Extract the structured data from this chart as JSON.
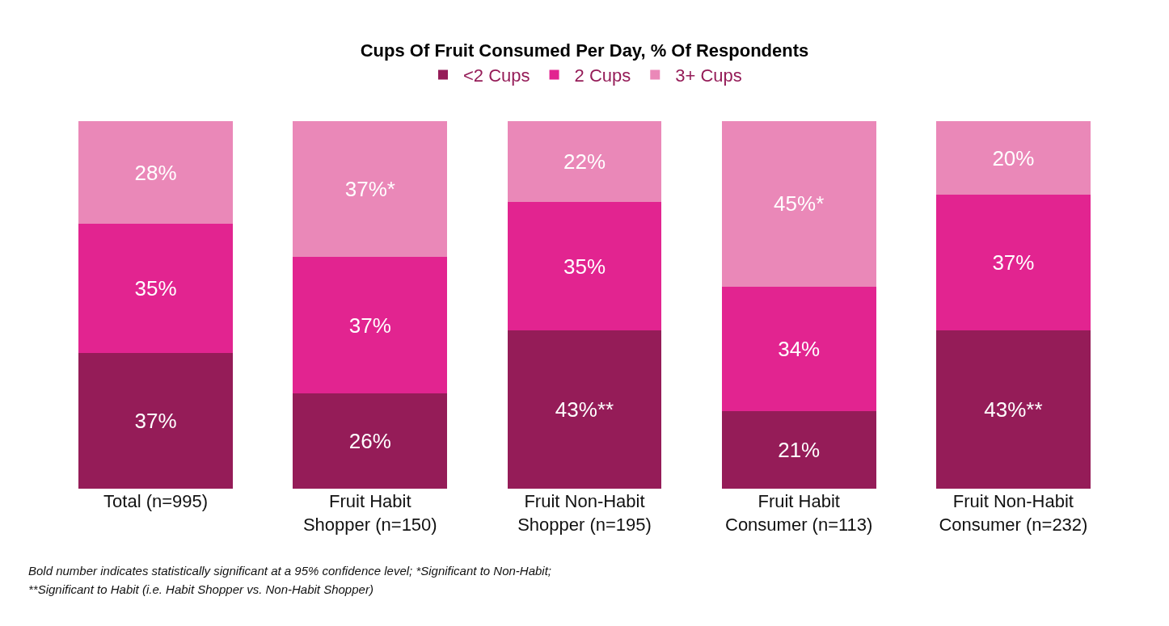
{
  "chart_data": {
    "type": "bar",
    "stacked": true,
    "title": "Cups Of Fruit Consumed Per Day, % Of Respondents",
    "categories": [
      "Total (n=995)",
      "Fruit Habit\nShopper (n=150)",
      "Fruit Non-Habit\nShopper (n=195)",
      "Fruit Habit\nConsumer (n=113)",
      "Fruit Non-Habit\nConsumer (n=232)"
    ],
    "series": [
      {
        "name": "<2 Cups",
        "color": "#951c58",
        "values": [
          37,
          26,
          43,
          21,
          43
        ],
        "value_labels": [
          "37%",
          "26%",
          "43%**",
          "21%",
          "43%**"
        ]
      },
      {
        "name": "2 Cups",
        "color": "#e22490",
        "values": [
          35,
          37,
          35,
          34,
          37
        ],
        "value_labels": [
          "35%",
          "37%",
          "35%",
          "34%",
          "37%"
        ]
      },
      {
        "name": "3+ Cups",
        "color": "#ea88b8",
        "values": [
          28,
          37,
          22,
          45,
          20
        ],
        "value_labels": [
          "28%",
          "37%*",
          "22%",
          "45%*",
          "20%"
        ]
      }
    ],
    "ylim": [
      0,
      100
    ],
    "tick_labels": "x",
    "legend": "top",
    "annotations": [
      "Bold number indicates statistically significant at a 95% confidence level; *Significant to Non-Habit;",
      "**Significant to Habit (i.e. Habit Shopper vs. Non-Habit Shopper)"
    ]
  }
}
